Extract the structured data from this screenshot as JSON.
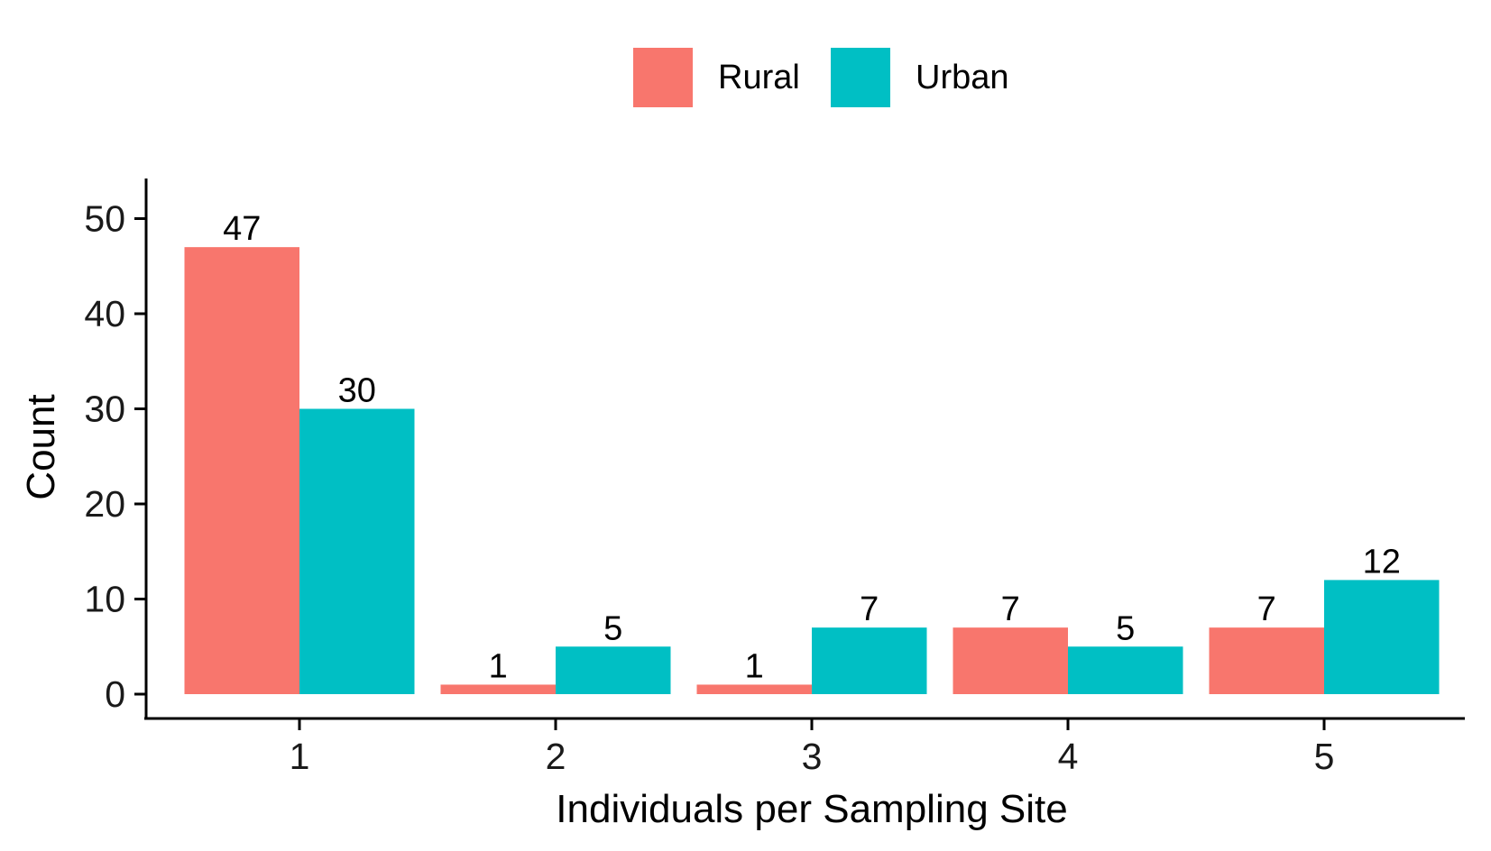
{
  "chart_data": {
    "type": "bar",
    "title": "",
    "xlabel": "Individuals per Sampling Site",
    "ylabel": "Count",
    "categories": [
      "1",
      "2",
      "3",
      "4",
      "5"
    ],
    "series": [
      {
        "name": "Rural",
        "color": "#F8766D",
        "values": [
          47,
          1,
          1,
          7,
          7
        ]
      },
      {
        "name": "Urban",
        "color": "#00BFC4",
        "values": [
          30,
          5,
          7,
          5,
          12
        ]
      }
    ],
    "ylim": [
      -2.5,
      54
    ],
    "yticks": [
      0,
      10,
      20,
      30,
      40,
      50
    ],
    "grid": false,
    "legend_position": "top"
  }
}
